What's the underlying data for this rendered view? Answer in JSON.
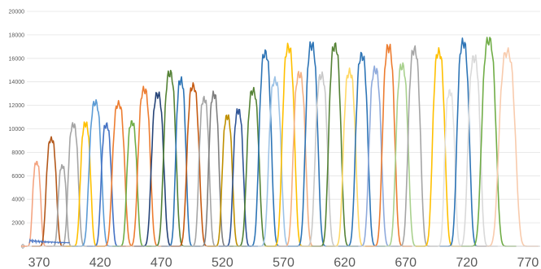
{
  "chart_data": {
    "type": "line",
    "title": "",
    "xlabel": "",
    "ylabel": "",
    "xlim": [
      360,
      780
    ],
    "ylim": [
      0,
      20000
    ],
    "grid": true,
    "legend": "none",
    "x_ticks": [
      "370",
      "420",
      "470",
      "520",
      "570",
      "620",
      "670",
      "720",
      "770"
    ],
    "y_ticks": [
      "0",
      "2000",
      "4000",
      "6000",
      "8000",
      "10000",
      "12000",
      "14000",
      "16000",
      "18000",
      "20000"
    ],
    "series": [
      {
        "color": "#f4a582",
        "center": 368,
        "peak": 7100,
        "fwhm": 4
      },
      {
        "color": "#b3581b",
        "center": 380,
        "peak": 9100,
        "fwhm": 5
      },
      {
        "color": "#a5a5a5",
        "center": 389,
        "peak": 6800,
        "fwhm": 4
      },
      {
        "color": "#a5a5a5",
        "center": 398,
        "peak": 10300,
        "fwhm": 5
      },
      {
        "color": "#ffc000",
        "center": 408,
        "peak": 10400,
        "fwhm": 5
      },
      {
        "color": "#5b9bd5",
        "center": 416,
        "peak": 12200,
        "fwhm": 6
      },
      {
        "color": "#4472c4",
        "center": 425,
        "peak": 10300,
        "fwhm": 5
      },
      {
        "color": "#ed7d31",
        "center": 435,
        "peak": 12100,
        "fwhm": 6
      },
      {
        "color": "#70ad47",
        "center": 446,
        "peak": 10500,
        "fwhm": 5
      },
      {
        "color": "#ed7d31",
        "center": 456,
        "peak": 13300,
        "fwhm": 6
      },
      {
        "color": "#264478",
        "center": 467,
        "peak": 12900,
        "fwhm": 6
      },
      {
        "color": "#548235",
        "center": 477,
        "peak": 14700,
        "fwhm": 6
      },
      {
        "color": "#2e75b6",
        "center": 486,
        "peak": 14100,
        "fwhm": 5
      },
      {
        "color": "#c55a11",
        "center": 496,
        "peak": 13600,
        "fwhm": 6
      },
      {
        "color": "#a5a5a5",
        "center": 505,
        "peak": 12500,
        "fwhm": 5
      },
      {
        "color": "#7f7f7f",
        "center": 513,
        "peak": 12900,
        "fwhm": 5
      },
      {
        "color": "#bf9000",
        "center": 524,
        "peak": 11000,
        "fwhm": 5
      },
      {
        "color": "#2f5597",
        "center": 533,
        "peak": 11500,
        "fwhm": 5
      },
      {
        "color": "#548235",
        "center": 545,
        "peak": 13200,
        "fwhm": 6
      },
      {
        "color": "#2e75b6",
        "center": 555,
        "peak": 16400,
        "fwhm": 6
      },
      {
        "color": "#9dc3e6",
        "center": 563,
        "peak": 14100,
        "fwhm": 6
      },
      {
        "color": "#ffc000",
        "center": 574,
        "peak": 16900,
        "fwhm": 6
      },
      {
        "color": "#f4b183",
        "center": 583,
        "peak": 14600,
        "fwhm": 6
      },
      {
        "color": "#2e75b6",
        "center": 593,
        "peak": 17100,
        "fwhm": 6
      },
      {
        "color": "#c9c9c9",
        "center": 601,
        "peak": 14500,
        "fwhm": 6
      },
      {
        "color": "#548235",
        "center": 612,
        "peak": 17000,
        "fwhm": 6
      },
      {
        "color": "#ffd966",
        "center": 624,
        "peak": 14800,
        "fwhm": 6
      },
      {
        "color": "#2e75b6",
        "center": 634,
        "peak": 16200,
        "fwhm": 6
      },
      {
        "color": "#8faadc",
        "center": 645,
        "peak": 15000,
        "fwhm": 6
      },
      {
        "color": "#ed7d31",
        "center": 656,
        "peak": 16900,
        "fwhm": 6
      },
      {
        "color": "#a9d18e",
        "center": 667,
        "peak": 15300,
        "fwhm": 6
      },
      {
        "color": "#a5a5a5",
        "center": 677,
        "peak": 16700,
        "fwhm": 6
      },
      {
        "color": "#ffc000",
        "center": 697,
        "peak": 16500,
        "fwhm": 6
      },
      {
        "color": "#e2e2e2",
        "center": 706,
        "peak": 13100,
        "fwhm": 5
      },
      {
        "color": "#2e75b6",
        "center": 717,
        "peak": 17300,
        "fwhm": 6
      },
      {
        "color": "#d9d9d9",
        "center": 726,
        "peak": 16000,
        "fwhm": 6
      },
      {
        "color": "#70ad47",
        "center": 738,
        "peak": 17500,
        "fwhm": 7
      },
      {
        "color": "#f8cbad",
        "center": 753,
        "peak": 16500,
        "fwhm": 8
      }
    ]
  }
}
